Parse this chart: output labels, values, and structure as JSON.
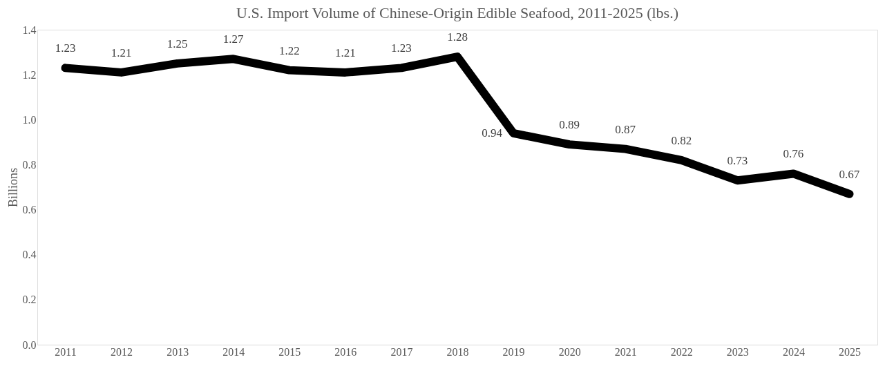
{
  "chart_data": {
    "type": "line",
    "title": "U.S. Import Volume of Chinese-Origin Edible Seafood, 2011-2025 (lbs.)",
    "ylabel": "Billions",
    "categories": [
      "2011",
      "2012",
      "2013",
      "2014",
      "2015",
      "2016",
      "2017",
      "2018",
      "2019",
      "2020",
      "2021",
      "2022",
      "2023",
      "2024",
      "2025"
    ],
    "series": [
      {
        "color": "#000000",
        "values": [
          1.23,
          1.21,
          1.25,
          1.27,
          1.22,
          1.21,
          1.23,
          1.28,
          0.94,
          0.89,
          0.87,
          0.82,
          0.73,
          0.76,
          0.67
        ]
      }
    ],
    "ylim": [
      0,
      1.4
    ],
    "yticks": [
      {
        "value": 0,
        "label": "0.0"
      },
      {
        "value": 0.2,
        "label": "0.2"
      },
      {
        "value": 0.4,
        "label": "0.4"
      },
      {
        "value": 0.6,
        "label": "0.6"
      },
      {
        "value": 0.8,
        "label": "0.8"
      },
      {
        "value": 1.0,
        "label": "1.0"
      },
      {
        "value": 1.2,
        "label": "1.2"
      },
      {
        "value": 1.4,
        "label": "1.4"
      }
    ],
    "grid": false,
    "line_style": "solid",
    "data_labels": true
  }
}
